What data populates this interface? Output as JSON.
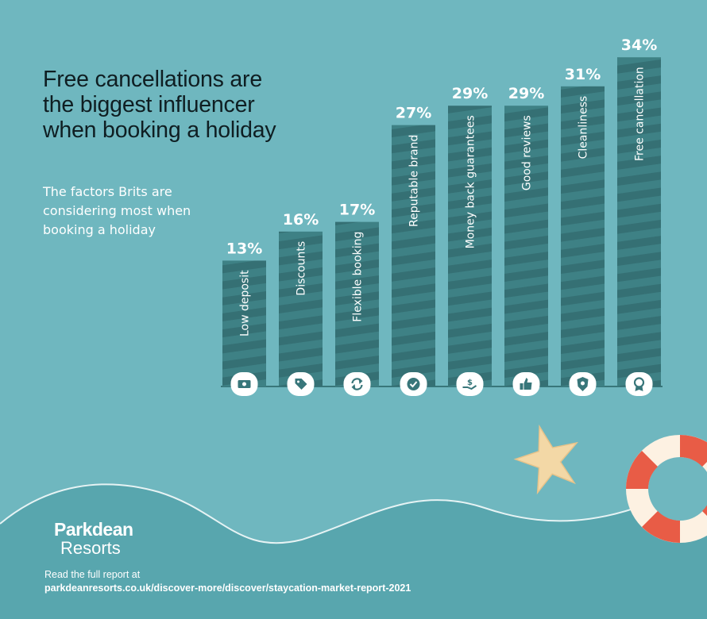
{
  "header": {
    "title": "Free cancellations are the biggest influencer when booking a holiday",
    "subtitle": "The factors Brits are considering most when booking  a holiday"
  },
  "footer": {
    "brand_line1": "Parkdean",
    "brand_line2": "Resorts",
    "read_text": "Read the full report at",
    "url": "parkdeanresorts.co.uk/discover-more/discover/staycation-market-report-2021"
  },
  "colors": {
    "background": "#6fb7bf",
    "bar": "#38767a",
    "bar_stripe": "#3e8185",
    "wave": "#58a6ae",
    "value_label": "#ffffff"
  },
  "chart_data": {
    "type": "bar",
    "categories": [
      "Low deposit",
      "Discounts",
      "Flexible booking",
      "Reputable brand",
      "Money back guarantees",
      "Good reviews",
      "Cleanliness",
      "Free cancellation"
    ],
    "values": [
      13,
      16,
      17,
      27,
      29,
      29,
      31,
      34
    ],
    "value_labels": [
      "13%",
      "16%",
      "17%",
      "27%",
      "29%",
      "29%",
      "31%",
      "34%"
    ],
    "icons": [
      "banknote-icon",
      "price-tag-icon",
      "refresh-icon",
      "check-circle-icon",
      "money-hand-icon",
      "thumbs-up-icon",
      "shield-icon",
      "award-icon"
    ],
    "title": "Free cancellations are the biggest influencer when booking a holiday",
    "xlabel": "",
    "ylabel": "",
    "ylim": [
      0,
      34
    ],
    "grid": false,
    "legend": "none"
  }
}
